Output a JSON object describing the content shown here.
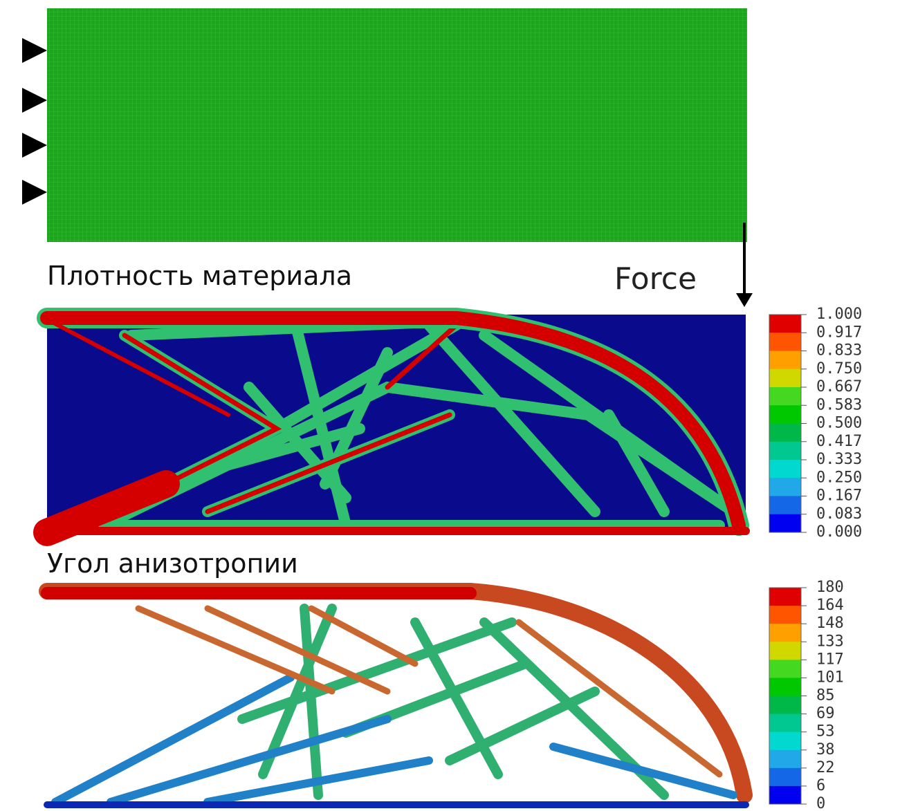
{
  "force_label": "Force",
  "density": {
    "title": "Плотность материала",
    "colorbar": {
      "labels": [
        "1.000",
        "0.917",
        "0.833",
        "0.750",
        "0.667",
        "0.583",
        "0.500",
        "0.417",
        "0.333",
        "0.250",
        "0.167",
        "0.083",
        "0.000"
      ],
      "colors": [
        "#e00000",
        "#ff5500",
        "#ffa000",
        "#d0d800",
        "#44d820",
        "#00c800",
        "#00b848",
        "#00c890",
        "#00d8d0",
        "#20a8e8",
        "#1468e8",
        "#0000f0"
      ]
    }
  },
  "angle": {
    "title": "Угол анизотропии",
    "colorbar": {
      "labels": [
        "180",
        "164",
        "148",
        "133",
        "117",
        "101",
        "85",
        "69",
        "53",
        "38",
        "22",
        "6",
        "0"
      ],
      "colors": [
        "#e00000",
        "#ff5500",
        "#ffa000",
        "#d0d800",
        "#44d820",
        "#00c800",
        "#00b848",
        "#00c890",
        "#00d8d0",
        "#20a8e8",
        "#1468e8",
        "#0000f0"
      ]
    }
  }
}
